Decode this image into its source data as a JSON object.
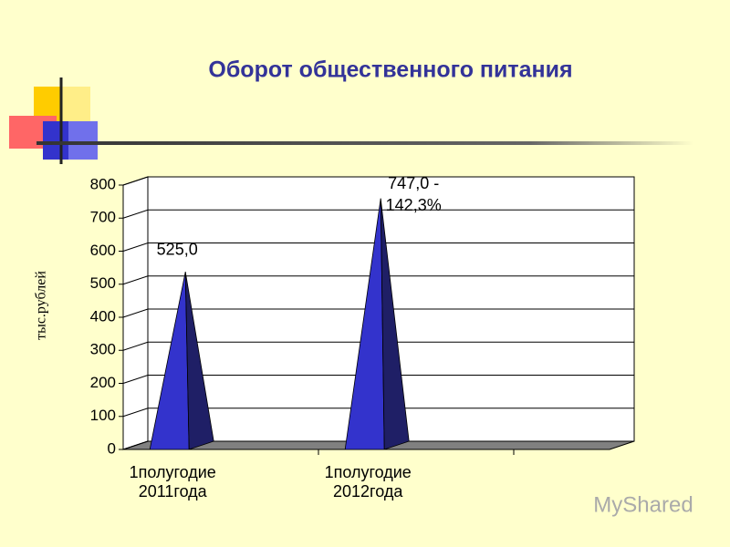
{
  "chart_data": {
    "type": "pyramid",
    "title": "Оборот общественного питания",
    "y_label": "тыс.рублей",
    "categories": [
      [
        "1полугодие",
        "2011года"
      ],
      [
        "1полугодие",
        "2012года"
      ]
    ],
    "values": [
      525,
      747
    ],
    "value_labels": [
      [
        "525,0"
      ],
      [
        "747,0 -",
        "142,3%"
      ]
    ],
    "color": "#3333cc",
    "ylim": [
      0,
      800
    ],
    "yticks": [
      0,
      100,
      200,
      300,
      400,
      500,
      600,
      700,
      800
    ],
    "grid": true
  },
  "watermark": "MyShared"
}
